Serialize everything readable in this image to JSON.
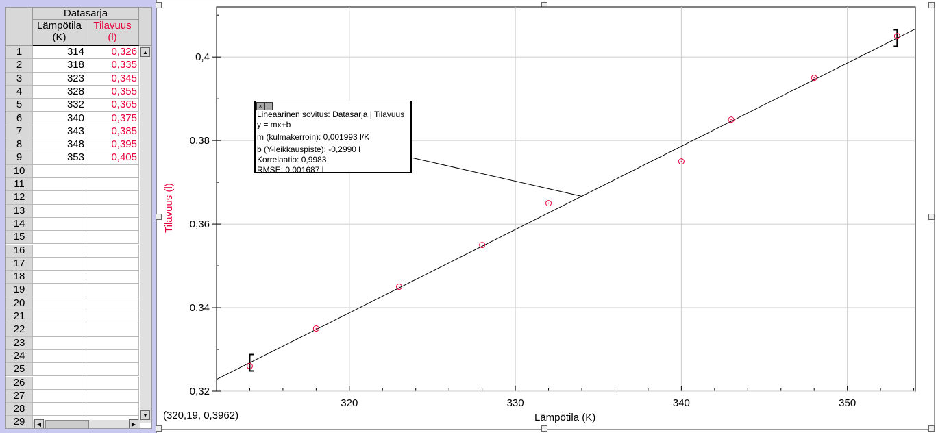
{
  "table": {
    "group": "Datasarja",
    "col1": {
      "name": "Lämpötila",
      "unit": "(K)"
    },
    "col2": {
      "name": "Tilavuus",
      "unit": "(l)"
    },
    "rows": [
      [
        "1",
        "314",
        "0,326"
      ],
      [
        "2",
        "318",
        "0,335"
      ],
      [
        "3",
        "323",
        "0,345"
      ],
      [
        "4",
        "328",
        "0,355"
      ],
      [
        "5",
        "332",
        "0,365"
      ],
      [
        "6",
        "340",
        "0,375"
      ],
      [
        "7",
        "343",
        "0,385"
      ],
      [
        "8",
        "348",
        "0,395"
      ],
      [
        "9",
        "353",
        "0,405"
      ],
      [
        "10",
        "",
        ""
      ],
      [
        "11",
        "",
        ""
      ],
      [
        "12",
        "",
        ""
      ],
      [
        "13",
        "",
        ""
      ],
      [
        "14",
        "",
        ""
      ],
      [
        "15",
        "",
        ""
      ],
      [
        "16",
        "",
        ""
      ],
      [
        "17",
        "",
        ""
      ],
      [
        "18",
        "",
        ""
      ],
      [
        "19",
        "",
        ""
      ],
      [
        "20",
        "",
        ""
      ],
      [
        "21",
        "",
        ""
      ],
      [
        "22",
        "",
        ""
      ],
      [
        "23",
        "",
        ""
      ],
      [
        "24",
        "",
        ""
      ],
      [
        "25",
        "",
        ""
      ],
      [
        "26",
        "",
        ""
      ],
      [
        "27",
        "",
        ""
      ],
      [
        "28",
        "",
        ""
      ],
      [
        "29",
        "",
        ""
      ]
    ]
  },
  "annotation": {
    "title": "Lineaarinen sovitus: Datasarja | Tilavuus",
    "equation": "y = mx+b",
    "m": "m (kulmakerroin): 0,001993 l/K",
    "b": "b (Y-leikkauspiste): -0,2990 l",
    "corr": "Korrelaatio: 0,9983",
    "rmse": "RMSE: 0,001687 l"
  },
  "coord_readout": "(320,19, 0,3962)",
  "chart_data": {
    "type": "scatter",
    "xlabel": "Lämpötila (K)",
    "ylabel": "Tilavuus (l)",
    "xlim": [
      312,
      354.1
    ],
    "ylim": [
      0.32,
      0.412
    ],
    "xticks": [
      320,
      330,
      340,
      350
    ],
    "xtick_labels": [
      "320",
      "330",
      "340",
      "350"
    ],
    "yticks": [
      0.32,
      0.34,
      0.36,
      0.38,
      0.4
    ],
    "ytick_labels": [
      "0,32",
      "0,34",
      "0,36",
      "0,38",
      "0,4"
    ],
    "grid": true,
    "x": [
      314,
      318,
      323,
      328,
      332,
      340,
      343,
      348,
      353
    ],
    "y": [
      0.326,
      0.335,
      0.345,
      0.355,
      0.365,
      0.375,
      0.385,
      0.395,
      0.405
    ],
    "fit": {
      "m": 0.001993,
      "b": -0.299,
      "range": [
        314,
        353
      ]
    },
    "point_color": "#e8003c"
  }
}
